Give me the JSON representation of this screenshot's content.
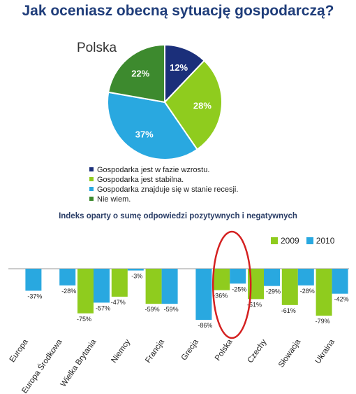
{
  "title": "Jak oceniasz obecną sytuację gospodarczą?",
  "chart_data": [
    {
      "type": "pie",
      "label": "Polska",
      "slices": [
        {
          "name": "Gospodarka jest w fazie wzrostu.",
          "value": 12,
          "label": "12%",
          "color": "#1b2f7a"
        },
        {
          "name": "Gospodarka jest stabilna.",
          "value": 28,
          "label": "28%",
          "color": "#8fcc1e"
        },
        {
          "name": "Gospodarka znajduje się w stanie recesji.",
          "value": 37,
          "label": "37%",
          "color": "#29a8e0"
        },
        {
          "name": "Nie wiem.",
          "value": 22,
          "label": "22%",
          "color": "#3d8a2e"
        }
      ],
      "legend_placement": "bottom"
    },
    {
      "type": "bar",
      "title": "Indeks oparty o sumę odpowiedzi pozytywnych i negatywnych",
      "categories": [
        "Europa",
        "Europa Środkowa",
        "Wielka Brytania",
        "Niemcy",
        "Francja",
        "Grecja",
        "Polska",
        "Czechy",
        "Słowacja",
        "Ukraina"
      ],
      "series": [
        {
          "name": "2009",
          "color": "#8fcc1e",
          "values": [
            null,
            null,
            -75,
            -47,
            -59,
            null,
            -36,
            -51,
            -61,
            -79
          ],
          "labels": [
            "",
            "",
            "-75%",
            "-47%",
            "-59%",
            "",
            "-36%",
            "-51%",
            "-61%",
            "-79%"
          ]
        },
        {
          "name": "2010",
          "color": "#29a8e0",
          "values": [
            -37,
            -28,
            -57,
            -3,
            -59,
            -86,
            -25,
            -29,
            -28,
            -42
          ],
          "labels": [
            "-37%",
            "-28%",
            "-57%",
            "-3%",
            "-59%",
            "-86%",
            "-25%",
            "-29%",
            "-28%",
            "-42%"
          ]
        }
      ],
      "ylim": [
        -90,
        0
      ],
      "legend_placement": "top-right",
      "highlight": {
        "category": "Polska",
        "color": "#d42020"
      }
    }
  ]
}
